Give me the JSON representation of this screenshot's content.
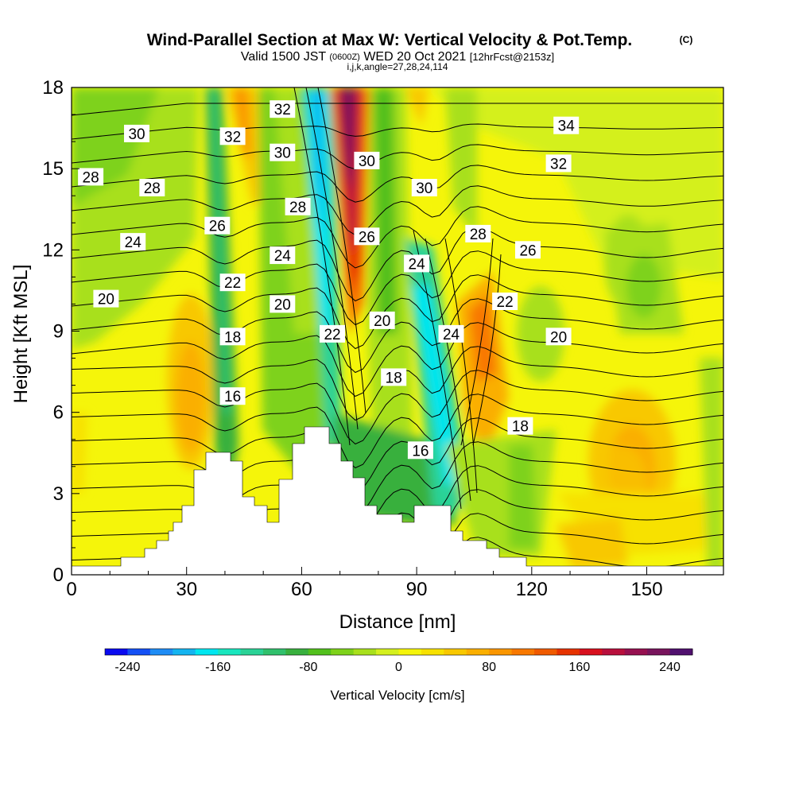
{
  "chart_data": {
    "type": "heatmap",
    "title": "Wind-Parallel Section at Max W: Vertical Velocity & Pot.Temp.",
    "title_tag": "(C)",
    "subtitle_parts": [
      "Valid 1500 JST",
      "(0600Z)",
      "WED 20 Oct 2021",
      "[12hrFcst@2153z]"
    ],
    "subtitle2": "i,j,k,angle=27,28,24,114",
    "xlabel": "Distance [nm]",
    "ylabel": "Height [Kft MSL]",
    "xlim": [
      0,
      170
    ],
    "ylim": [
      0,
      18
    ],
    "x_ticks": [
      "0",
      "30",
      "60",
      "90",
      "120",
      "150"
    ],
    "y_ticks": [
      "0",
      "3",
      "6",
      "9",
      "12",
      "15",
      "18"
    ],
    "colorbar": {
      "label": "Vertical Velocity [cm/s]",
      "range": [
        -260,
        260
      ],
      "ticks": [
        "-240",
        "-160",
        "-80",
        "0",
        "80",
        "160",
        "240"
      ],
      "colors": [
        "#0a0af0",
        "#1450f5",
        "#1e8cf5",
        "#14b4f0",
        "#00e6f0",
        "#19e6be",
        "#2ad296",
        "#30c06c",
        "#38b03e",
        "#52c01c",
        "#7ed21a",
        "#a8e01c",
        "#d4f01e",
        "#f5f50a",
        "#f7e100",
        "#f8c800",
        "#faaf00",
        "#fa9600",
        "#f87800",
        "#f05a00",
        "#e63200",
        "#d8101e",
        "#b80f3c",
        "#961050",
        "#78145c",
        "#50106e"
      ]
    },
    "contour_labels": [
      {
        "text": "30",
        "x": 17,
        "y": 16.3
      },
      {
        "text": "28",
        "x": 5,
        "y": 14.7
      },
      {
        "text": "28",
        "x": 21,
        "y": 14.3
      },
      {
        "text": "26",
        "x": 38,
        "y": 12.9
      },
      {
        "text": "24",
        "x": 16,
        "y": 12.3
      },
      {
        "text": "20",
        "x": 9,
        "y": 10.2
      },
      {
        "text": "32",
        "x": 42,
        "y": 16.2
      },
      {
        "text": "32",
        "x": 55,
        "y": 17.2
      },
      {
        "text": "30",
        "x": 55,
        "y": 15.6
      },
      {
        "text": "28",
        "x": 59,
        "y": 13.6
      },
      {
        "text": "24",
        "x": 55,
        "y": 11.8
      },
      {
        "text": "22",
        "x": 42,
        "y": 10.8
      },
      {
        "text": "20",
        "x": 55,
        "y": 10.0
      },
      {
        "text": "18",
        "x": 42,
        "y": 8.8
      },
      {
        "text": "16",
        "x": 42,
        "y": 6.6
      },
      {
        "text": "30",
        "x": 77,
        "y": 15.3
      },
      {
        "text": "26",
        "x": 77,
        "y": 12.5
      },
      {
        "text": "22",
        "x": 68,
        "y": 8.9
      },
      {
        "text": "20",
        "x": 81,
        "y": 9.4
      },
      {
        "text": "18",
        "x": 84,
        "y": 7.3
      },
      {
        "text": "16",
        "x": 91,
        "y": 4.6
      },
      {
        "text": "24",
        "x": 90,
        "y": 11.5
      },
      {
        "text": "30",
        "x": 92,
        "y": 14.3
      },
      {
        "text": "24",
        "x": 99,
        "y": 8.9
      },
      {
        "text": "28",
        "x": 106,
        "y": 12.6
      },
      {
        "text": "22",
        "x": 113,
        "y": 10.1
      },
      {
        "text": "26",
        "x": 119,
        "y": 12.0
      },
      {
        "text": "34",
        "x": 129,
        "y": 16.6
      },
      {
        "text": "32",
        "x": 127,
        "y": 15.2
      },
      {
        "text": "20",
        "x": 127,
        "y": 8.8
      },
      {
        "text": "18",
        "x": 117,
        "y": 5.5
      }
    ]
  }
}
